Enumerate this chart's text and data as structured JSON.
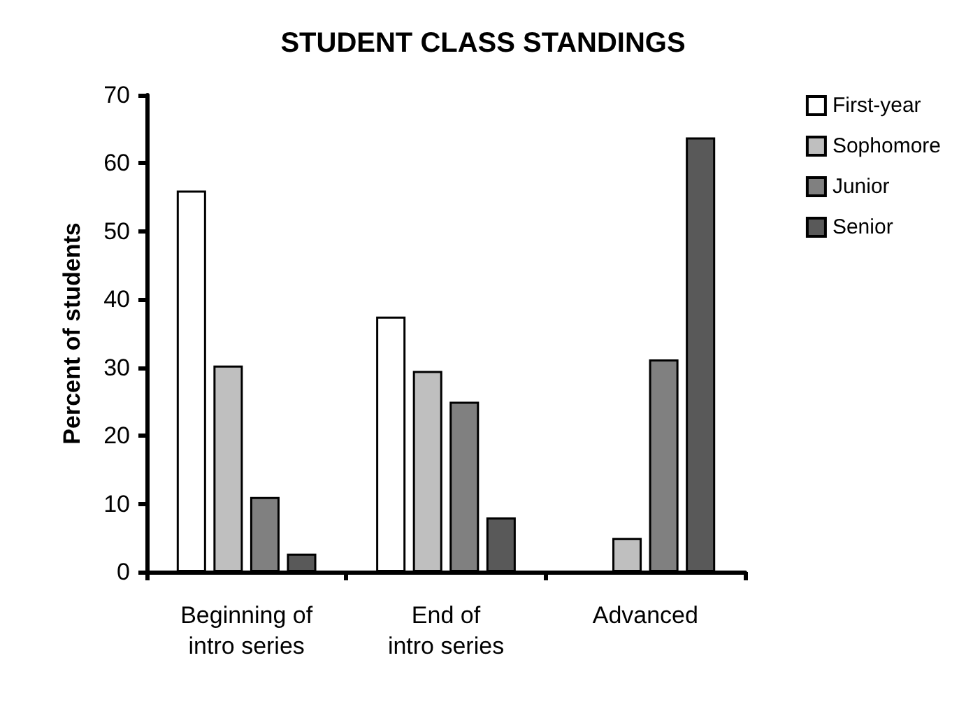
{
  "chart_data": {
    "type": "bar",
    "title": "STUDENT CLASS STANDINGS",
    "ylabel": "Percent of students",
    "categories": [
      "Beginning of\nintro series",
      "End of\nintro series",
      "Advanced"
    ],
    "series": [
      {
        "name": "First-year",
        "color": "#ffffff",
        "values": [
          56,
          37.5,
          null
        ]
      },
      {
        "name": "Sophomore",
        "color": "#bfbfbf",
        "values": [
          30.3,
          29.5,
          5
        ]
      },
      {
        "name": "Junior",
        "color": "#808080",
        "values": [
          11,
          25,
          31.2
        ]
      },
      {
        "name": "Senior",
        "color": "#595959",
        "values": [
          2.7,
          8,
          63.8
        ]
      }
    ],
    "ylim": [
      0,
      70
    ],
    "yticks": [
      0,
      10,
      20,
      30,
      40,
      50,
      60,
      70
    ],
    "grid": false,
    "legend": "top right"
  }
}
